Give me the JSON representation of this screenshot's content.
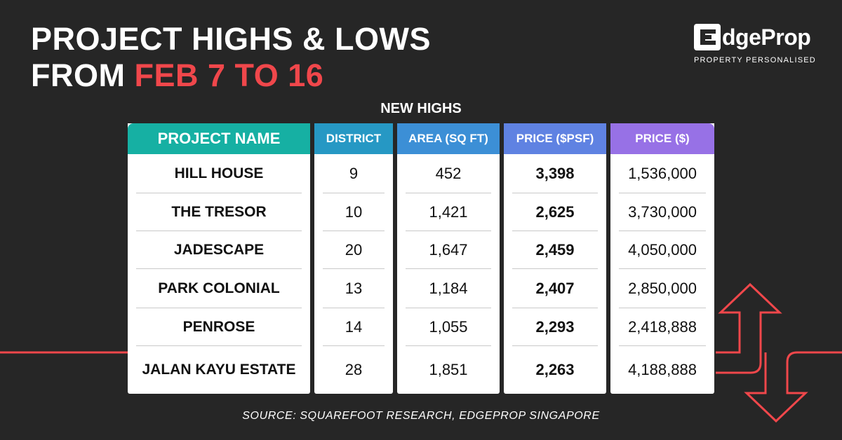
{
  "title": {
    "line1": "PROJECT HIGHS & LOWS",
    "line2_prefix": "FROM",
    "line2_accent": "FEB 7 TO 16"
  },
  "logo": {
    "wordmark": "dgeProp",
    "tagline": "PROPERTY PERSONALISED"
  },
  "subtitle": "NEW HIGHS",
  "colors": {
    "background": "#262626",
    "accent": "#f0474b",
    "header_project": "#16b0a3",
    "header_district": "#2698c4",
    "header_area": "#3c8fd6",
    "header_psf": "#5f82e2",
    "header_price": "#9771e6"
  },
  "table": {
    "headers": {
      "project": "PROJECT NAME",
      "district": "DISTRICT",
      "area": "AREA (SQ FT)",
      "psf": "PRICE ($PSF)",
      "price": "PRICE ($)"
    },
    "rows": [
      {
        "project": "HILL HOUSE",
        "district": "9",
        "area": "452",
        "psf": "3,398",
        "price": "1,536,000"
      },
      {
        "project": "THE TRESOR",
        "district": "10",
        "area": "1,421",
        "psf": "2,625",
        "price": "3,730,000"
      },
      {
        "project": "JADESCAPE",
        "district": "20",
        "area": "1,647",
        "psf": "2,459",
        "price": "4,050,000"
      },
      {
        "project": "PARK COLONIAL",
        "district": "13",
        "area": "1,184",
        "psf": "2,407",
        "price": "2,850,000"
      },
      {
        "project": "PENROSE",
        "district": "14",
        "area": "1,055",
        "psf": "2,293",
        "price": "2,418,888"
      },
      {
        "project": "JALAN KAYU ESTATE",
        "district": "28",
        "area": "1,851",
        "psf": "2,263",
        "price": "4,188,888"
      }
    ]
  },
  "source": "SOURCE: SQUAREFOOT RESEARCH, EDGEPROP SINGAPORE",
  "decor_icons": [
    "up-arrow-icon",
    "down-arrow-icon"
  ]
}
